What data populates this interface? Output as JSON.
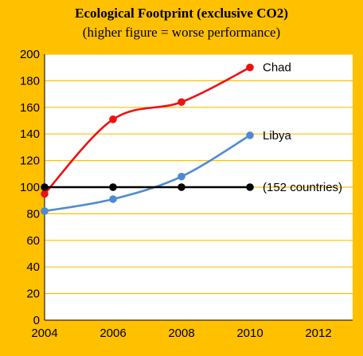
{
  "chart_data": {
    "type": "line",
    "title": "Ecological Footprint (exclusive CO2)",
    "subtitle": "(higher  figure  = worse performance)",
    "xlabel": "",
    "ylabel": "",
    "x": [
      2004,
      2006,
      2008,
      2010
    ],
    "xlim": [
      2004,
      2013
    ],
    "ylim": [
      0,
      200
    ],
    "xticks": [
      "2004",
      "2006",
      "2008",
      "2010",
      "2012"
    ],
    "yticks": [
      "0",
      "20",
      "40",
      "60",
      "80",
      "100",
      "120",
      "140",
      "160",
      "180",
      "200"
    ],
    "grid": "horizontal",
    "legend": "none (series labels at line ends)",
    "series": [
      {
        "name": "Chad",
        "values": [
          95,
          151,
          164,
          190
        ],
        "color": "#EE1111"
      },
      {
        "name": "Libya",
        "values": [
          82,
          91,
          108,
          139
        ],
        "color": "#4F8AD0"
      },
      {
        "name": "(152 countries)",
        "values": [
          100,
          100,
          100,
          100
        ],
        "color": "#000000"
      }
    ],
    "background_color": "#FFC000",
    "plot_background_color": "#FFFFFF",
    "gridline_color": "#FFC000"
  }
}
